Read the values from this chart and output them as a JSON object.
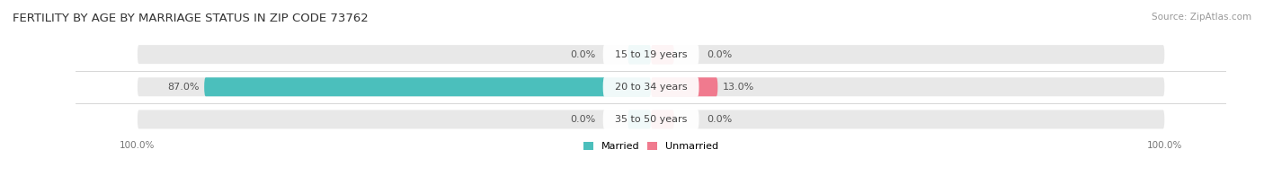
{
  "title": "FERTILITY BY AGE BY MARRIAGE STATUS IN ZIP CODE 73762",
  "source": "Source: ZipAtlas.com",
  "categories": [
    "15 to 19 years",
    "20 to 34 years",
    "35 to 50 years"
  ],
  "married_values": [
    0.0,
    87.0,
    0.0
  ],
  "unmarried_values": [
    0.0,
    13.0,
    0.0
  ],
  "married_color": "#4bbfbc",
  "unmarried_color": "#f07a8e",
  "bar_bg_color": "#e8e8e8",
  "center_label_bg": "#ffffff",
  "max_val": 100.0,
  "title_fontsize": 9.5,
  "source_fontsize": 7.5,
  "label_fontsize": 8,
  "category_fontsize": 8,
  "axis_label_fontsize": 7.5,
  "background_color": "#ffffff",
  "stub_size": 4.5,
  "separator_color": "#d0d0d0"
}
